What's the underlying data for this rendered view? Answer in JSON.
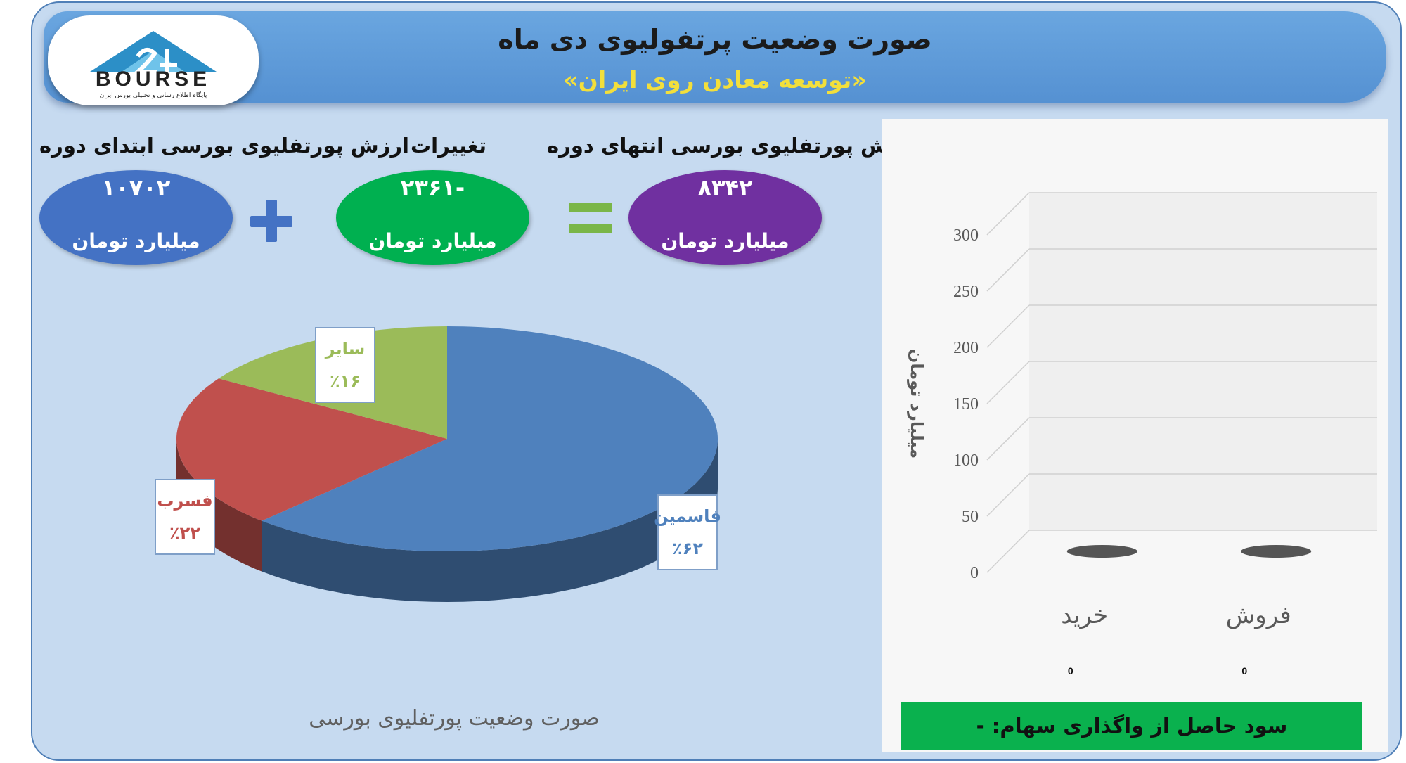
{
  "header": {
    "title": "صورت وضعیت پرتفولیوی دی ماه",
    "subtitle": "«توسعه معادن روی ایران»"
  },
  "logo": {
    "text": "BOURSE",
    "caption": "پایگاه اطلاع رسانی و تحلیلی بورس ایران"
  },
  "kpis": {
    "start": {
      "label": "ارزش پورتفلیوی بورسی ابتدای دوره",
      "value": "۱۰۷۰۲",
      "unit": "میلیارد تومان",
      "color": "#4472c4"
    },
    "change": {
      "label": "تغییرات",
      "value": "-۲۳۶۱",
      "unit": "میلیارد تومان",
      "color": "#00b050"
    },
    "end": {
      "label": "ارزش پورتفلیوی بورسی انتهای دوره",
      "value": "۸۳۴۲",
      "unit": "میلیارد تومان",
      "color": "#7030a0"
    },
    "plus_color": "#4472c4",
    "equals_color": "#7ab648"
  },
  "pie_title": "صورت وضعیت پورتفلیوی بورسی",
  "profit_label": "سود حاصل از واگذاری سهام: -",
  "chart_data": [
    {
      "type": "pie",
      "title": "صورت وضعیت پورتفلیوی بورسی",
      "slices": [
        {
          "name": "فاسمین",
          "value": 62,
          "label": "٪۶۲",
          "color": "#4f81bd"
        },
        {
          "name": "فسرب",
          "value": 22,
          "label": "٪۲۲",
          "color": "#c0504d"
        },
        {
          "name": "سایر",
          "value": 16,
          "label": "٪۱۶",
          "color": "#9bbb59"
        }
      ]
    },
    {
      "type": "bar",
      "categories": [
        "خرید",
        "فروش"
      ],
      "values": [
        0,
        0
      ],
      "ylabel": "میلیارد تومان",
      "ylim": [
        0,
        300
      ],
      "yticks": [
        "0",
        "50",
        "100",
        "150",
        "200",
        "250",
        "300"
      ],
      "data_labels": [
        "0",
        "0"
      ],
      "grid": true
    }
  ]
}
